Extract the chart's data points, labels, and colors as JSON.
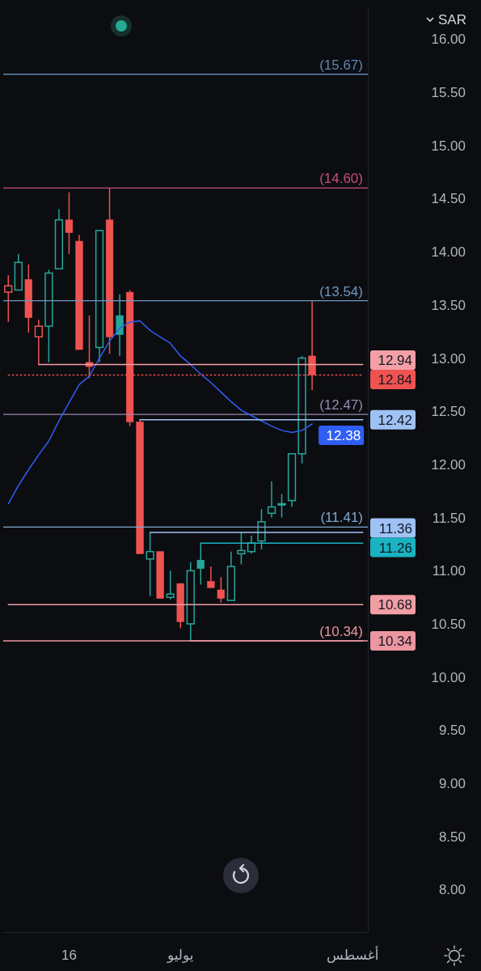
{
  "chart_data": {
    "type": "candlestick",
    "ylabel": "SAR",
    "categories": [
      null,
      null,
      null,
      null,
      null,
      null,
      "16",
      null,
      null,
      null,
      null,
      null,
      null,
      null,
      null,
      null,
      null,
      "يوليو",
      null,
      null,
      null,
      null,
      null,
      null,
      null,
      null,
      null,
      null,
      null,
      null,
      null,
      null,
      null,
      null,
      "أغسطس",
      null
    ],
    "ohlc": [
      [
        13.62,
        13.78,
        13.34,
        13.68
      ],
      [
        13.64,
        13.98,
        13.64,
        13.9
      ],
      [
        13.74,
        13.88,
        13.24,
        13.38
      ],
      [
        13.2,
        13.36,
        12.94,
        13.3
      ],
      [
        13.3,
        13.83,
        12.96,
        13.8
      ],
      [
        13.84,
        14.4,
        13.84,
        14.3
      ],
      [
        14.3,
        14.56,
        13.98,
        14.18
      ],
      [
        14.1,
        14.16,
        13.08,
        13.08
      ],
      [
        12.96,
        13.4,
        12.81,
        12.92
      ],
      [
        13.1,
        14.2,
        12.96,
        14.2
      ],
      [
        14.3,
        14.6,
        13.04,
        13.2
      ],
      [
        13.4,
        13.6,
        13.02,
        13.22
      ],
      [
        13.62,
        13.64,
        12.36,
        12.4
      ],
      [
        12.4,
        12.42,
        11.16,
        11.16
      ],
      [
        11.11,
        11.36,
        10.76,
        11.18
      ],
      [
        11.18,
        11.18,
        10.74,
        10.74
      ],
      [
        10.75,
        11.0,
        10.73,
        10.78
      ],
      [
        10.88,
        10.88,
        10.46,
        10.52
      ],
      [
        10.5,
        11.08,
        10.34,
        11.0
      ],
      [
        11.1,
        11.26,
        10.87,
        11.02
      ],
      [
        10.9,
        11.04,
        10.84,
        10.84
      ],
      [
        10.82,
        10.94,
        10.7,
        10.74
      ],
      [
        10.72,
        11.18,
        10.72,
        11.04
      ],
      [
        11.16,
        11.36,
        11.06,
        11.19
      ],
      [
        11.18,
        11.33,
        11.16,
        11.26
      ],
      [
        11.28,
        11.58,
        11.2,
        11.46
      ],
      [
        11.54,
        11.84,
        11.5,
        11.6
      ],
      [
        11.62,
        11.72,
        11.5,
        11.63
      ],
      [
        11.66,
        12.1,
        11.6,
        12.1
      ],
      [
        12.1,
        13.02,
        12.01,
        13.0
      ],
      [
        13.02,
        13.54,
        12.7,
        12.84
      ],
      null,
      null,
      null,
      null,
      null
    ],
    "colors": [
      "#ef5350",
      "#26a69a",
      "#ef5350",
      "#ef5350",
      "#26a69a",
      "#26a69a",
      "#ef5350",
      "#ef5350",
      "#ef5350",
      "#26a69a",
      "#ef5350",
      "#26a69a",
      "#ef5350",
      "#ef5350",
      "#26a69a",
      "#ef5350",
      "#26a69a",
      "#ef5350",
      "#26a69a",
      "#26a69a",
      "#ef5350",
      "#ef5350",
      "#26a69a",
      "#26a69a",
      "#26a69a",
      "#26a69a",
      "#26a69a",
      "#26a69a",
      "#26a69a",
      "#26a69a",
      "#ef5350",
      null,
      null,
      null,
      null,
      null
    ],
    "series": [
      {
        "type": "line",
        "color": "#2f5ef5",
        "values": [
          11.63,
          11.8,
          11.95,
          12.09,
          12.22,
          12.41,
          12.58,
          12.75,
          12.83,
          13.0,
          13.16,
          13.28,
          13.34,
          13.35,
          13.26,
          13.2,
          13.14,
          13.02,
          12.94,
          12.85,
          12.77,
          12.68,
          12.59,
          12.51,
          12.46,
          12.41,
          12.36,
          12.32,
          12.3,
          12.32,
          12.38,
          null,
          null,
          null,
          null,
          null
        ],
        "value_labels": [
          null,
          null,
          null,
          null,
          null,
          null,
          null,
          null,
          null,
          null,
          null,
          null,
          null,
          null,
          null,
          null,
          null,
          null,
          null,
          null,
          null,
          null,
          null,
          null,
          null,
          null,
          null,
          null,
          null,
          null,
          "12.38",
          null,
          null,
          null,
          null,
          null
        ]
      },
      {
        "type": "line",
        "color": "#f2a0a6",
        "values": [
          null,
          null,
          null,
          12.94,
          12.94,
          12.94,
          12.94,
          12.94,
          12.94,
          12.94,
          12.94,
          12.94,
          12.94,
          12.94,
          12.94,
          12.94,
          12.94,
          12.94,
          12.94,
          12.94,
          12.94,
          12.94,
          12.94,
          12.94,
          12.94,
          12.94,
          12.94,
          12.94,
          12.94,
          12.94,
          12.94,
          12.94,
          12.94,
          12.94,
          12.94,
          12.94
        ],
        "value_labels": [
          null,
          null,
          null,
          null,
          null,
          null,
          null,
          null,
          null,
          null,
          null,
          null,
          null,
          null,
          null,
          null,
          null,
          null,
          null,
          null,
          null,
          null,
          null,
          null,
          null,
          null,
          null,
          null,
          null,
          null,
          null,
          null,
          null,
          null,
          null,
          "12.94"
        ]
      },
      {
        "type": "line",
        "color": "#ef5350",
        "line_style": "dotted",
        "values": [
          12.84,
          12.84,
          12.84,
          12.84,
          12.84,
          12.84,
          12.84,
          12.84,
          12.84,
          12.84,
          12.84,
          12.84,
          12.84,
          12.84,
          12.84,
          12.84,
          12.84,
          12.84,
          12.84,
          12.84,
          12.84,
          12.84,
          12.84,
          12.84,
          12.84,
          12.84,
          12.84,
          12.84,
          12.84,
          12.84,
          12.84,
          12.84,
          12.84,
          12.84,
          12.84,
          12.84
        ],
        "value_labels": [
          null,
          null,
          null,
          null,
          null,
          null,
          null,
          null,
          null,
          null,
          null,
          null,
          null,
          null,
          null,
          null,
          null,
          null,
          null,
          null,
          null,
          null,
          null,
          null,
          null,
          null,
          null,
          null,
          null,
          null,
          null,
          null,
          null,
          null,
          null,
          "12.84"
        ]
      },
      {
        "type": "line",
        "color": "#9fc2f5",
        "values": [
          null,
          null,
          null,
          null,
          null,
          null,
          null,
          null,
          null,
          null,
          null,
          null,
          null,
          12.42,
          12.42,
          12.42,
          12.42,
          12.42,
          12.42,
          12.42,
          12.42,
          12.42,
          12.42,
          12.42,
          12.42,
          12.42,
          12.42,
          12.42,
          12.42,
          12.42,
          12.42,
          12.42,
          12.42,
          12.42,
          12.42,
          12.42
        ],
        "value_labels": [
          null,
          null,
          null,
          null,
          null,
          null,
          null,
          null,
          null,
          null,
          null,
          null,
          null,
          null,
          null,
          null,
          null,
          null,
          null,
          null,
          null,
          null,
          null,
          null,
          null,
          null,
          null,
          null,
          null,
          null,
          null,
          null,
          null,
          null,
          null,
          "12.42"
        ]
      },
      {
        "type": "line",
        "color": "#9fc2f5",
        "values": [
          null,
          null,
          null,
          null,
          null,
          null,
          null,
          null,
          null,
          null,
          null,
          null,
          null,
          null,
          11.36,
          11.36,
          11.36,
          11.36,
          11.36,
          11.36,
          11.36,
          11.36,
          11.36,
          11.36,
          11.36,
          11.36,
          11.36,
          11.36,
          11.36,
          11.36,
          11.36,
          11.36,
          11.36,
          11.36,
          11.36,
          11.36
        ],
        "value_labels": [
          null,
          null,
          null,
          null,
          null,
          null,
          null,
          null,
          null,
          null,
          null,
          null,
          null,
          null,
          null,
          null,
          null,
          null,
          null,
          null,
          null,
          null,
          null,
          null,
          null,
          null,
          null,
          null,
          null,
          null,
          null,
          null,
          null,
          null,
          null,
          "11.36"
        ]
      },
      {
        "type": "line",
        "color": "#19b3c2",
        "values": [
          null,
          null,
          null,
          null,
          null,
          null,
          null,
          null,
          null,
          null,
          null,
          null,
          null,
          null,
          null,
          null,
          null,
          null,
          null,
          11.26,
          11.26,
          11.26,
          11.26,
          11.26,
          11.26,
          11.26,
          11.26,
          11.26,
          11.26,
          11.26,
          11.26,
          11.26,
          11.26,
          11.26,
          11.26,
          11.26
        ],
        "value_labels": [
          null,
          null,
          null,
          null,
          null,
          null,
          null,
          null,
          null,
          null,
          null,
          null,
          null,
          null,
          null,
          null,
          null,
          null,
          null,
          null,
          null,
          null,
          null,
          null,
          null,
          null,
          null,
          null,
          null,
          null,
          null,
          null,
          null,
          null,
          null,
          "11.26"
        ]
      },
      {
        "type": "line",
        "color": "#f19ea4",
        "values": [
          10.68,
          10.68,
          10.68,
          10.68,
          10.68,
          10.68,
          10.68,
          10.68,
          10.68,
          10.68,
          10.68,
          10.68,
          10.68,
          10.68,
          10.68,
          10.68,
          10.68,
          10.68,
          10.68,
          10.68,
          10.68,
          10.68,
          10.68,
          10.68,
          10.68,
          10.68,
          10.68,
          10.68,
          10.68,
          10.68,
          10.68,
          10.68,
          10.68,
          10.68,
          10.68,
          10.68
        ],
        "value_labels": [
          null,
          null,
          null,
          null,
          null,
          null,
          null,
          null,
          null,
          null,
          null,
          null,
          null,
          null,
          null,
          null,
          null,
          null,
          null,
          null,
          null,
          null,
          null,
          null,
          null,
          null,
          null,
          null,
          null,
          null,
          null,
          null,
          null,
          null,
          null,
          "10.68"
        ]
      },
      {
        "type": "line",
        "color": "#ec96a0",
        "values": [
          null,
          null,
          null,
          null,
          null,
          null,
          null,
          null,
          null,
          null,
          null,
          null,
          null,
          null,
          null,
          null,
          null,
          null,
          10.34,
          10.34,
          10.34,
          10.34,
          10.34,
          10.34,
          10.34,
          10.34,
          10.34,
          10.34,
          10.34,
          10.34,
          10.34,
          10.34,
          10.34,
          10.34,
          10.34,
          10.34
        ],
        "value_labels": [
          null,
          null,
          null,
          null,
          null,
          null,
          null,
          null,
          null,
          null,
          null,
          null,
          null,
          null,
          null,
          null,
          null,
          null,
          null,
          null,
          null,
          null,
          null,
          null,
          null,
          null,
          null,
          null,
          null,
          null,
          null,
          null,
          null,
          null,
          null,
          "10.34"
        ]
      }
    ],
    "ylim": [
      7.6,
      16.3
    ],
    "yticks": [
      {
        "value": 8,
        "label": "8.00"
      },
      {
        "value": 8.5,
        "label": "8.50"
      },
      {
        "value": 9,
        "label": "9.00"
      },
      {
        "value": 9.5,
        "label": "9.50"
      },
      {
        "value": 10,
        "label": "10.00"
      },
      {
        "value": 10.5,
        "label": "10.50"
      },
      {
        "value": 11,
        "label": "11.00"
      },
      {
        "value": 11.5,
        "label": "11.50"
      },
      {
        "value": 12,
        "label": "12.00"
      },
      {
        "value": 12.5,
        "label": "12.50"
      },
      {
        "value": 13,
        "label": "13.00"
      },
      {
        "value": 13.5,
        "label": "13.50"
      },
      {
        "value": 14,
        "label": "14.00"
      },
      {
        "value": 14.5,
        "label": "14.50"
      },
      {
        "value": 15,
        "label": "15.00"
      },
      {
        "value": 15.5,
        "label": "15.50"
      },
      {
        "value": 16,
        "label": "16.00"
      }
    ],
    "ref_lines": [
      {
        "axis": "y",
        "value": 15.67,
        "label": "(15.67)",
        "color": "#5f87b3"
      },
      {
        "axis": "y",
        "value": 14.6,
        "label": "(14.60)",
        "color": "#c64f77"
      },
      {
        "axis": "y",
        "value": 13.54,
        "label": "(13.54)",
        "color": "#6e98c2"
      },
      {
        "axis": "y",
        "value": 12.47,
        "label": "(12.47)",
        "color": "#9a88b0"
      },
      {
        "axis": "y",
        "value": 11.41,
        "label": "(11.41)",
        "color": "#7ea8d0"
      },
      {
        "axis": "y",
        "value": 10.34,
        "label": "(10.34)",
        "color": "#ec96a0"
      }
    ]
  }
}
